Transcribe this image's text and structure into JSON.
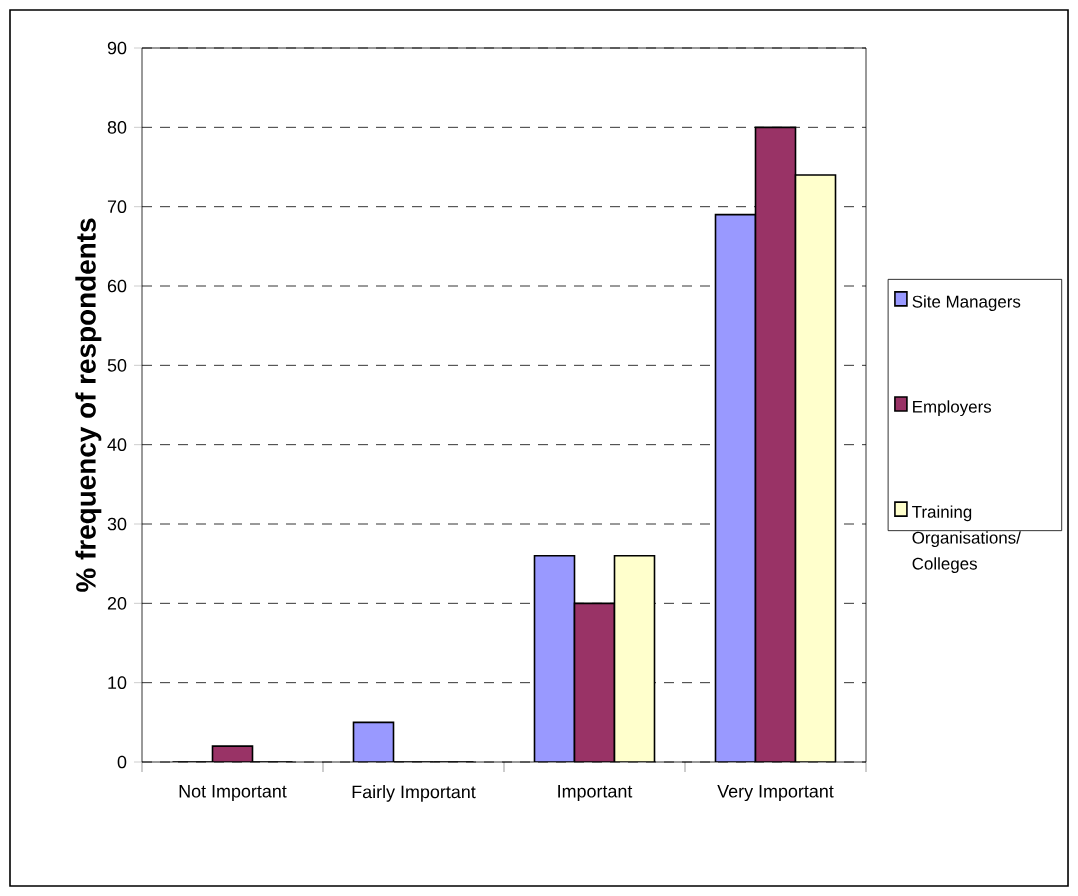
{
  "chart_data": {
    "type": "bar",
    "ylabel": "% frequency of respondents",
    "categories": [
      "Not Important",
      "Fairly Important",
      "Important",
      "Very Important"
    ],
    "series": [
      {
        "name": "Site Managers",
        "color": "#9999ff",
        "values": [
          0,
          5,
          26,
          69
        ]
      },
      {
        "name": "Employers",
        "color": "#993366",
        "values": [
          2,
          0,
          20,
          80
        ]
      },
      {
        "name": "Training Organisations/ Colleges",
        "color": "#ffffcc",
        "values": [
          0,
          0,
          26,
          74
        ]
      }
    ],
    "ylim": [
      0,
      90
    ],
    "yticks": [
      0,
      10,
      20,
      30,
      40,
      50,
      60,
      70,
      80,
      90
    ],
    "grid": "y",
    "legend": "right"
  }
}
